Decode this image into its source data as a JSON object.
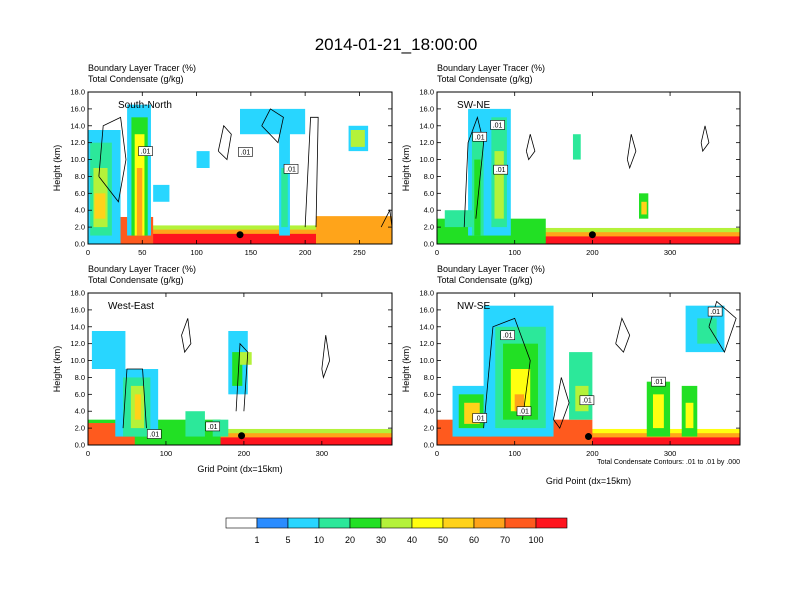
{
  "main_title": "2014-01-21_18:00:00",
  "colors": {
    "levels": [
      "#ffffff",
      "#2a8cff",
      "#28d6ff",
      "#2ce89a",
      "#22e024",
      "#b4f23a",
      "#ffff10",
      "#ffd21a",
      "#ffa41a",
      "#ff5a1e",
      "#ff141e"
    ],
    "contour": "#000000"
  },
  "chart_data": [
    {
      "type": "heatmap",
      "panel": "South-North",
      "title_line1": "Boundary Layer Tracer   (%)",
      "title_line2": "Total Condensate   (g/kg)",
      "ylabel": "Height (km)",
      "xlabel": "",
      "xlim": [
        0,
        280
      ],
      "ylim": [
        0,
        18
      ],
      "xticks": [
        "0",
        "50",
        "100",
        "150",
        "200",
        "250"
      ],
      "yticks": [
        "0.0",
        "2.0",
        "4.0",
        "6.0",
        "8.0",
        "10.0",
        "12.0",
        "14.0",
        "16.0",
        "18.0"
      ],
      "contour_labels": [
        {
          "text": ".01",
          "x": 53,
          "y": 11.0
        },
        {
          "text": ".01",
          "x": 145,
          "y": 10.9
        },
        {
          "text": ".01",
          "x": 187,
          "y": 8.9
        }
      ],
      "marker": {
        "x": 140,
        "y": 1.1
      }
    },
    {
      "type": "heatmap",
      "panel": "SW-NE",
      "title_line1": "Boundary Layer Tracer   (%)",
      "title_line2": "Total Condensate   (g/kg)",
      "ylabel": "Height (km)",
      "xlabel": "",
      "xlim": [
        0,
        390
      ],
      "ylim": [
        0,
        18
      ],
      "xticks": [
        "0",
        "100",
        "200",
        "300"
      ],
      "yticks": [
        "0.0",
        "2.0",
        "4.0",
        "6.0",
        "8.0",
        "10.0",
        "12.0",
        "14.0",
        "16.0",
        "18.0"
      ],
      "contour_labels": [
        {
          "text": ".01",
          "x": 55,
          "y": 12.7
        },
        {
          "text": ".01",
          "x": 78,
          "y": 14.1
        },
        {
          "text": ".01",
          "x": 82,
          "y": 8.8
        }
      ],
      "marker": {
        "x": 200,
        "y": 1.1
      }
    },
    {
      "type": "heatmap",
      "panel": "West-East",
      "title_line1": "Boundary Layer Tracer   (%)",
      "title_line2": "Total Condensate   (g/kg)",
      "ylabel": "Height (km)",
      "xlabel": "Grid Point (dx=15km)",
      "xlim": [
        0,
        390
      ],
      "ylim": [
        0,
        18
      ],
      "xticks": [
        "0",
        "100",
        "200",
        "300"
      ],
      "yticks": [
        "0.0",
        "2.0",
        "4.0",
        "6.0",
        "8.0",
        "10.0",
        "12.0",
        "14.0",
        "16.0",
        "18.0"
      ],
      "contour_labels": [
        {
          "text": ".01",
          "x": 85,
          "y": 1.3
        },
        {
          "text": ".01",
          "x": 160,
          "y": 2.2
        }
      ],
      "marker": {
        "x": 197,
        "y": 1.1
      }
    },
    {
      "type": "heatmap",
      "panel": "NW-SE",
      "title_line1": "Boundary Layer Tracer   (%)",
      "title_line2": "Total Condensate   (g/kg)",
      "ylabel": "Height (km)",
      "xlabel": "Grid Point (dx=15km)",
      "xlim": [
        0,
        390
      ],
      "ylim": [
        0,
        18
      ],
      "xticks": [
        "0",
        "100",
        "200",
        "300"
      ],
      "yticks": [
        "0.0",
        "2.0",
        "4.0",
        "6.0",
        "8.0",
        "10.0",
        "12.0",
        "14.0",
        "16.0",
        "18.0"
      ],
      "contour_labels": [
        {
          "text": ".01",
          "x": 91,
          "y": 13.0
        },
        {
          "text": ".01",
          "x": 55,
          "y": 3.2
        },
        {
          "text": ".01",
          "x": 112,
          "y": 4.0
        },
        {
          "text": ".01",
          "x": 193,
          "y": 5.3
        },
        {
          "text": ".01",
          "x": 285,
          "y": 7.5
        },
        {
          "text": ".01",
          "x": 358,
          "y": 15.8
        }
      ],
      "marker": {
        "x": 195,
        "y": 1.0
      },
      "footnote": "Total Condensate Contours: .01 to .01 by .000"
    }
  ],
  "colorbar": {
    "labels": [
      "1",
      "5",
      "10",
      "20",
      "30",
      "40",
      "50",
      "60",
      "70",
      "100"
    ]
  }
}
